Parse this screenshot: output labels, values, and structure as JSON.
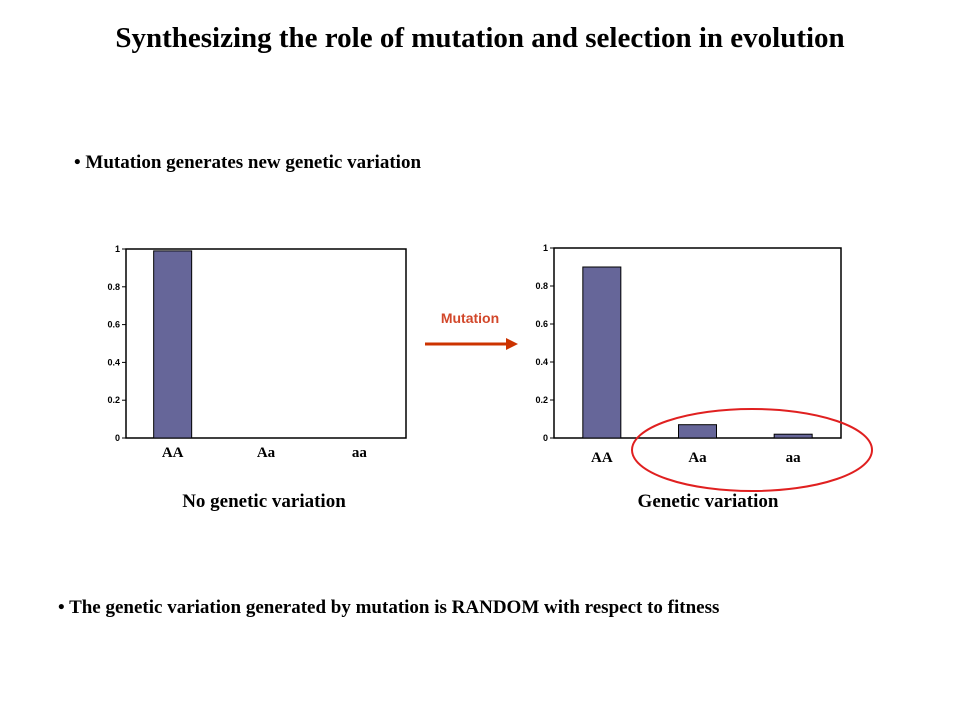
{
  "title": "Synthesizing the role of mutation and selection in evolution",
  "bullets": {
    "mutation": "Mutation generates new genetic variation",
    "random": "The genetic variation generated by mutation is RANDOM with respect to fitness"
  },
  "arrow_label": "Mutation",
  "colors": {
    "bar": "#666699",
    "arrow": "#cc3300",
    "circle": "#e02020"
  },
  "chart_data": [
    {
      "type": "bar",
      "categories": [
        "AA",
        "Aa",
        "aa"
      ],
      "values": [
        0.99,
        0,
        0
      ],
      "ylim": [
        0,
        1
      ],
      "yticks": [
        "0",
        "0.2",
        "0.4",
        "0.6",
        "0.8",
        "1"
      ],
      "caption": "No genetic variation"
    },
    {
      "type": "bar",
      "categories": [
        "AA",
        "Aa",
        "aa"
      ],
      "values": [
        0.9,
        0.07,
        0.02
      ],
      "ylim": [
        0,
        1
      ],
      "yticks": [
        "0",
        "0.2",
        "0.4",
        "0.6",
        "0.8",
        "1"
      ],
      "caption": "Genetic variation"
    }
  ]
}
